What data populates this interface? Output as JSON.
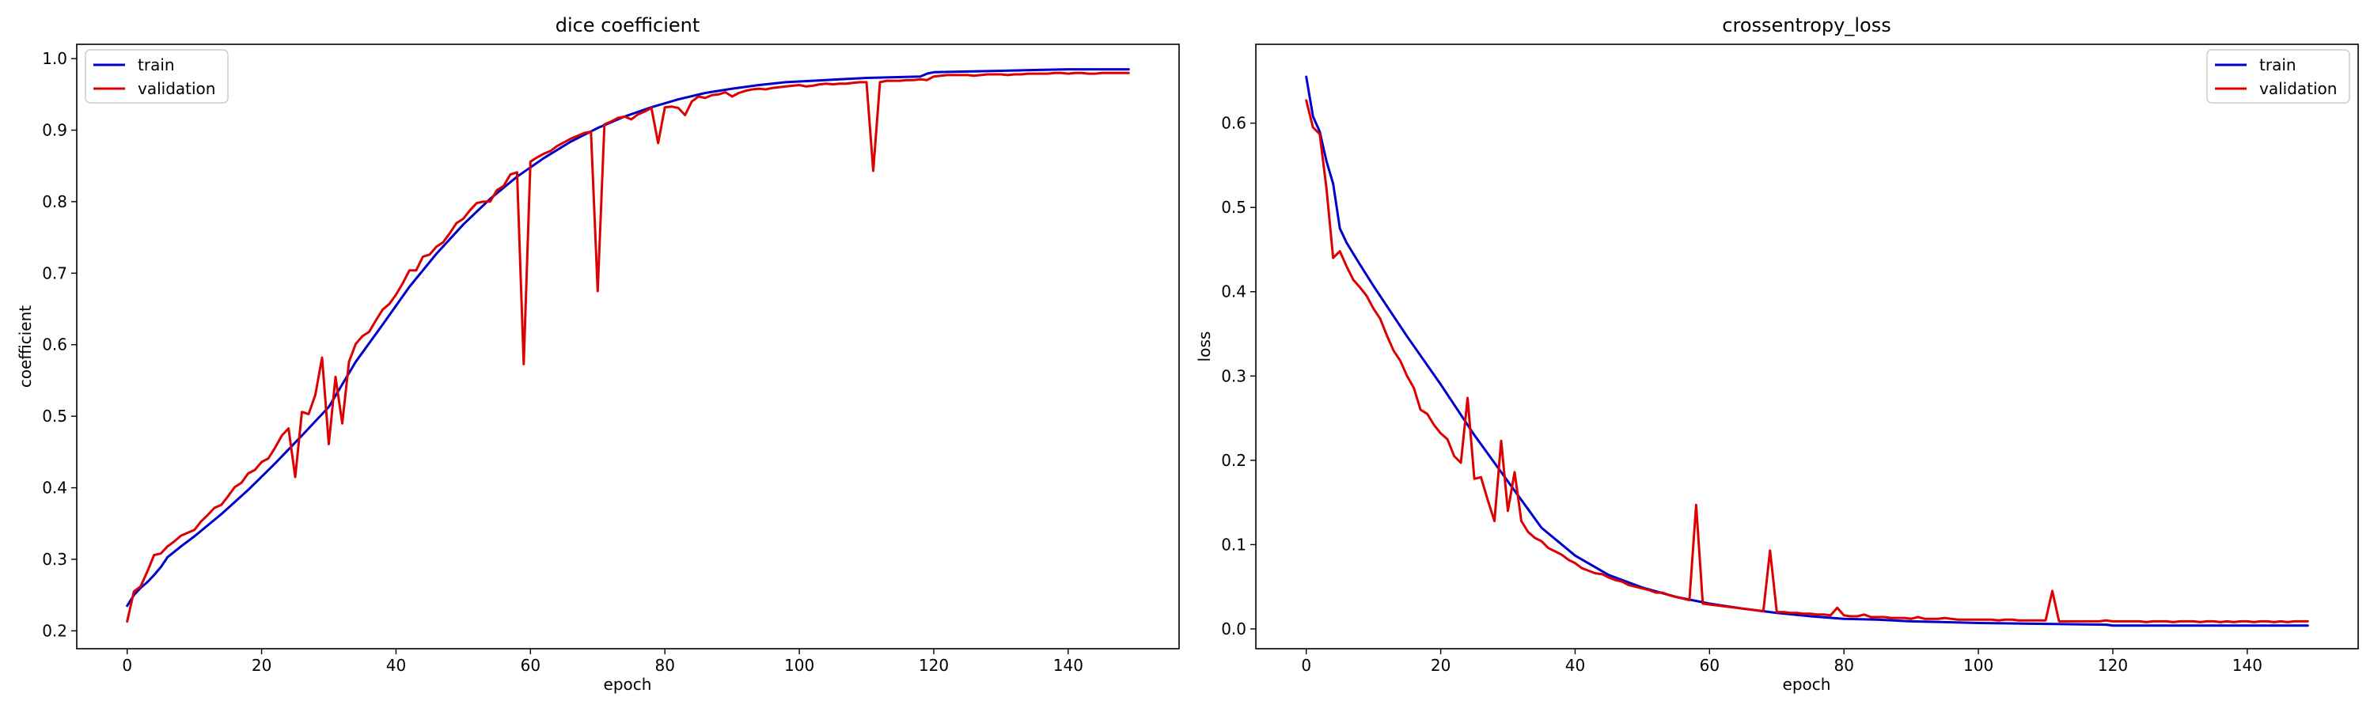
{
  "chart_data": [
    {
      "type": "line",
      "title": "dice coefficient",
      "xlabel": "epoch",
      "ylabel": "coefficient",
      "xlim": [
        -7.5,
        156.5
      ],
      "ylim": [
        0.175,
        1.02
      ],
      "xticks": [
        0,
        20,
        40,
        60,
        80,
        100,
        120,
        140
      ],
      "yticks": [
        0.2,
        0.3,
        0.4,
        0.5,
        0.6,
        0.7,
        0.8,
        0.9,
        1.0
      ],
      "ytick_labels": [
        "0.2",
        "0.3",
        "0.4",
        "0.5",
        "0.6",
        "0.7",
        "0.8",
        "0.9",
        "1.0"
      ],
      "legend_position": "top-left",
      "grid": false,
      "series": [
        {
          "name": "train",
          "color": "#0000cc",
          "x": [
            0,
            1,
            2,
            3,
            4,
            5,
            6,
            8,
            10,
            14,
            18,
            22,
            26,
            30,
            34,
            38,
            42,
            46,
            50,
            54,
            58,
            62,
            66,
            70,
            74,
            78,
            82,
            86,
            90,
            94,
            98,
            102,
            106,
            110,
            114,
            118,
            119,
            120,
            125,
            130,
            135,
            140,
            145,
            149
          ],
          "values": [
            0.235,
            0.25,
            0.26,
            0.268,
            0.278,
            0.289,
            0.303,
            0.318,
            0.332,
            0.363,
            0.397,
            0.434,
            0.473,
            0.513,
            0.576,
            0.628,
            0.681,
            0.727,
            0.768,
            0.804,
            0.835,
            0.861,
            0.884,
            0.903,
            0.919,
            0.932,
            0.943,
            0.952,
            0.958,
            0.963,
            0.967,
            0.969,
            0.971,
            0.973,
            0.974,
            0.975,
            0.979,
            0.981,
            0.982,
            0.983,
            0.984,
            0.985,
            0.985,
            0.985
          ]
        },
        {
          "name": "validation",
          "color": "#dd0000",
          "x": [
            0,
            1,
            2,
            3,
            4,
            5,
            6,
            7,
            8,
            9,
            10,
            11,
            12,
            13,
            14,
            15,
            16,
            17,
            18,
            19,
            20,
            21,
            22,
            23,
            24,
            25,
            26,
            27,
            28,
            29,
            30,
            31,
            32,
            33,
            34,
            35,
            36,
            37,
            38,
            39,
            40,
            41,
            42,
            43,
            44,
            45,
            46,
            47,
            48,
            49,
            50,
            51,
            52,
            53,
            54,
            55,
            56,
            57,
            58,
            59,
            60,
            61,
            62,
            63,
            64,
            65,
            66,
            67,
            68,
            69,
            70,
            71,
            72,
            73,
            74,
            75,
            76,
            77,
            78,
            79,
            80,
            81,
            82,
            83,
            84,
            85,
            86,
            87,
            88,
            89,
            90,
            91,
            92,
            93,
            94,
            95,
            96,
            97,
            98,
            99,
            100,
            101,
            102,
            103,
            104,
            105,
            106,
            107,
            108,
            109,
            110,
            111,
            112,
            113,
            114,
            115,
            116,
            117,
            118,
            119,
            120,
            121,
            122,
            123,
            124,
            125,
            126,
            127,
            128,
            129,
            130,
            131,
            132,
            133,
            134,
            135,
            136,
            137,
            138,
            139,
            140,
            141,
            142,
            143,
            144,
            145,
            146,
            147,
            148,
            149
          ],
          "values": [
            0.213,
            0.255,
            0.262,
            0.283,
            0.306,
            0.308,
            0.318,
            0.325,
            0.333,
            0.337,
            0.341,
            0.353,
            0.362,
            0.372,
            0.376,
            0.388,
            0.401,
            0.407,
            0.42,
            0.425,
            0.436,
            0.441,
            0.456,
            0.473,
            0.483,
            0.415,
            0.506,
            0.503,
            0.53,
            0.582,
            0.461,
            0.555,
            0.49,
            0.576,
            0.601,
            0.612,
            0.618,
            0.634,
            0.649,
            0.657,
            0.67,
            0.686,
            0.704,
            0.704,
            0.723,
            0.726,
            0.737,
            0.743,
            0.756,
            0.77,
            0.776,
            0.788,
            0.798,
            0.8,
            0.8,
            0.816,
            0.822,
            0.838,
            0.841,
            0.573,
            0.856,
            0.862,
            0.867,
            0.871,
            0.878,
            0.883,
            0.888,
            0.892,
            0.896,
            0.898,
            0.675,
            0.908,
            0.912,
            0.917,
            0.919,
            0.915,
            0.922,
            0.926,
            0.931,
            0.882,
            0.932,
            0.933,
            0.931,
            0.921,
            0.94,
            0.947,
            0.945,
            0.949,
            0.95,
            0.953,
            0.947,
            0.952,
            0.955,
            0.957,
            0.958,
            0.957,
            0.959,
            0.96,
            0.961,
            0.962,
            0.963,
            0.961,
            0.962,
            0.964,
            0.965,
            0.964,
            0.965,
            0.965,
            0.966,
            0.967,
            0.967,
            0.843,
            0.967,
            0.969,
            0.969,
            0.969,
            0.97,
            0.97,
            0.971,
            0.97,
            0.975,
            0.976,
            0.977,
            0.977,
            0.977,
            0.977,
            0.976,
            0.977,
            0.978,
            0.978,
            0.978,
            0.977,
            0.978,
            0.978,
            0.979,
            0.979,
            0.979,
            0.979,
            0.98,
            0.98,
            0.979,
            0.98,
            0.98,
            0.979,
            0.979,
            0.98,
            0.98,
            0.98,
            0.98,
            0.98
          ]
        }
      ]
    },
    {
      "type": "line",
      "title": "crossentropy_loss",
      "xlabel": "epoch",
      "ylabel": "loss",
      "xlim": [
        -7.5,
        156.5
      ],
      "ylim": [
        -0.0235,
        0.6935
      ],
      "xticks": [
        0,
        20,
        40,
        60,
        80,
        100,
        120,
        140
      ],
      "yticks": [
        0.0,
        0.1,
        0.2,
        0.3,
        0.4,
        0.5,
        0.6
      ],
      "ytick_labels": [
        "0.0",
        "0.1",
        "0.2",
        "0.3",
        "0.4",
        "0.5",
        "0.6"
      ],
      "legend_position": "top-right",
      "grid": false,
      "series": [
        {
          "name": "train",
          "color": "#0000cc",
          "x": [
            0,
            1,
            2,
            3,
            4,
            5,
            6,
            8,
            10,
            12,
            15,
            20,
            25,
            30,
            35,
            40,
            45,
            50,
            55,
            60,
            65,
            70,
            75,
            80,
            85,
            90,
            95,
            100,
            110,
            119,
            120,
            130,
            140,
            149
          ],
          "values": [
            0.655,
            0.608,
            0.59,
            0.555,
            0.528,
            0.475,
            0.458,
            0.432,
            0.407,
            0.383,
            0.347,
            0.29,
            0.23,
            0.175,
            0.12,
            0.087,
            0.064,
            0.049,
            0.038,
            0.03,
            0.024,
            0.019,
            0.015,
            0.012,
            0.011,
            0.009,
            0.008,
            0.007,
            0.006,
            0.005,
            0.004,
            0.004,
            0.004,
            0.004
          ]
        },
        {
          "name": "validation",
          "color": "#dd0000",
          "x": [
            0,
            1,
            2,
            3,
            4,
            5,
            6,
            7,
            8,
            9,
            10,
            11,
            12,
            13,
            14,
            15,
            16,
            17,
            18,
            19,
            20,
            21,
            22,
            23,
            24,
            25,
            26,
            27,
            28,
            29,
            30,
            31,
            32,
            33,
            34,
            35,
            36,
            37,
            38,
            39,
            40,
            41,
            42,
            43,
            44,
            45,
            46,
            47,
            48,
            49,
            50,
            51,
            52,
            53,
            54,
            55,
            56,
            57,
            58,
            59,
            60,
            61,
            62,
            63,
            64,
            65,
            66,
            67,
            68,
            69,
            70,
            71,
            72,
            73,
            74,
            75,
            76,
            77,
            78,
            79,
            80,
            81,
            82,
            83,
            84,
            85,
            86,
            87,
            88,
            89,
            90,
            91,
            92,
            93,
            94,
            95,
            96,
            97,
            98,
            99,
            100,
            101,
            102,
            103,
            104,
            105,
            106,
            107,
            108,
            109,
            110,
            111,
            112,
            113,
            114,
            115,
            116,
            117,
            118,
            119,
            120,
            121,
            122,
            123,
            124,
            125,
            126,
            127,
            128,
            129,
            130,
            131,
            132,
            133,
            134,
            135,
            136,
            137,
            138,
            139,
            140,
            141,
            142,
            143,
            144,
            145,
            146,
            147,
            148,
            149
          ],
          "values": [
            0.627,
            0.595,
            0.587,
            0.523,
            0.44,
            0.448,
            0.43,
            0.414,
            0.405,
            0.395,
            0.38,
            0.368,
            0.348,
            0.33,
            0.318,
            0.3,
            0.286,
            0.26,
            0.255,
            0.242,
            0.232,
            0.225,
            0.205,
            0.197,
            0.274,
            0.178,
            0.18,
            0.153,
            0.128,
            0.223,
            0.14,
            0.186,
            0.128,
            0.115,
            0.108,
            0.104,
            0.096,
            0.092,
            0.088,
            0.082,
            0.078,
            0.072,
            0.069,
            0.066,
            0.065,
            0.061,
            0.058,
            0.056,
            0.052,
            0.05,
            0.048,
            0.046,
            0.043,
            0.043,
            0.04,
            0.038,
            0.036,
            0.034,
            0.147,
            0.03,
            0.029,
            0.028,
            0.027,
            0.026,
            0.025,
            0.024,
            0.023,
            0.022,
            0.021,
            0.093,
            0.02,
            0.02,
            0.019,
            0.019,
            0.018,
            0.018,
            0.017,
            0.017,
            0.016,
            0.025,
            0.016,
            0.015,
            0.015,
            0.017,
            0.014,
            0.014,
            0.014,
            0.013,
            0.013,
            0.013,
            0.012,
            0.014,
            0.012,
            0.012,
            0.012,
            0.013,
            0.012,
            0.011,
            0.011,
            0.011,
            0.011,
            0.011,
            0.011,
            0.01,
            0.011,
            0.011,
            0.01,
            0.01,
            0.01,
            0.01,
            0.01,
            0.045,
            0.009,
            0.009,
            0.009,
            0.009,
            0.009,
            0.009,
            0.009,
            0.01,
            0.009,
            0.009,
            0.009,
            0.009,
            0.009,
            0.008,
            0.009,
            0.009,
            0.009,
            0.008,
            0.009,
            0.009,
            0.009,
            0.008,
            0.009,
            0.009,
            0.008,
            0.009,
            0.008,
            0.009,
            0.009,
            0.008,
            0.009,
            0.009,
            0.008,
            0.009,
            0.008,
            0.009,
            0.009,
            0.009
          ]
        }
      ]
    }
  ]
}
